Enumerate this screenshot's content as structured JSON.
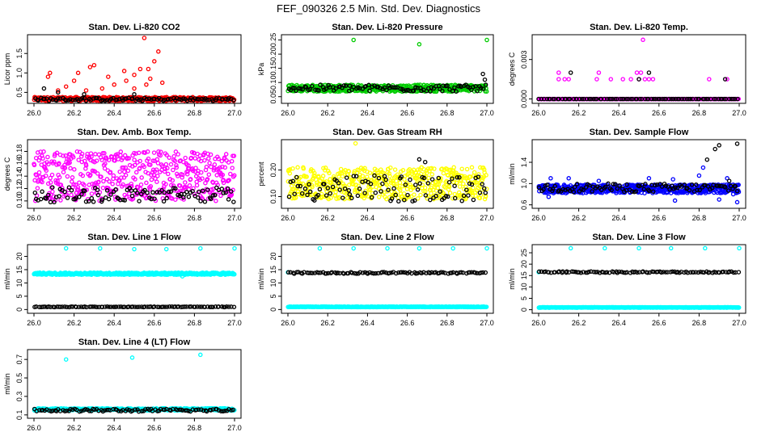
{
  "figure_title": "FEF_090326  2.5 Min. Std. Dev. Diagnostics",
  "chart_data": [
    {
      "type": "scatter",
      "title": "Stan. Dev. Li-820 CO2",
      "ylabel": "Licor ppm",
      "xlim": [
        26.0,
        27.0
      ],
      "ylim": [
        0.28,
        1.92
      ],
      "xticks": [
        "26.0",
        "26.2",
        "26.4",
        "26.6",
        "26.8",
        "27.0"
      ],
      "xtick_values": [
        26.0,
        26.2,
        26.4,
        26.6,
        26.8,
        27.0
      ],
      "yticks": [
        "0.5",
        "1.0",
        "1.5"
      ],
      "ytick_values": [
        0.5,
        1.0,
        1.5
      ],
      "series": [
        {
          "name": "series_a",
          "color": "#ff0000",
          "base": 0.33,
          "spread": 0.05,
          "n": 420,
          "outliers": [
            [
              26.08,
              1.0
            ],
            [
              26.07,
              0.9
            ],
            [
              26.16,
              0.65
            ],
            [
              26.2,
              0.8
            ],
            [
              26.22,
              1.0
            ],
            [
              26.28,
              1.15
            ],
            [
              26.3,
              1.2
            ],
            [
              26.37,
              0.9
            ],
            [
              26.4,
              0.7
            ],
            [
              26.45,
              1.05
            ],
            [
              26.5,
              0.95
            ],
            [
              26.53,
              1.1
            ],
            [
              26.55,
              1.9
            ],
            [
              26.57,
              1.1
            ],
            [
              26.58,
              0.85
            ],
            [
              26.6,
              1.3
            ],
            [
              26.62,
              1.55
            ],
            [
              26.64,
              0.75
            ],
            [
              26.5,
              0.6
            ],
            [
              26.46,
              0.8
            ],
            [
              26.34,
              0.6
            ],
            [
              26.26,
              0.55
            ],
            [
              26.12,
              0.55
            ],
            [
              26.56,
              0.7
            ]
          ]
        },
        {
          "name": "series_b",
          "color": "#000000",
          "base": 0.32,
          "spread": 0.04,
          "n": 100,
          "outliers": [
            [
              26.05,
              0.6
            ],
            [
              26.12,
              0.5
            ],
            [
              26.5,
              0.45
            ],
            [
              26.25,
              0.45
            ]
          ]
        }
      ]
    },
    {
      "type": "scatter",
      "title": "Stan. Dev. Li-820 Pressure",
      "ylabel": "kPa",
      "xlim": [
        26.0,
        27.0
      ],
      "ylim": [
        0.035,
        0.26
      ],
      "xticks": [
        "26.0",
        "26.2",
        "26.4",
        "26.6",
        "26.8",
        "27.0"
      ],
      "xtick_values": [
        26.0,
        26.2,
        26.4,
        26.6,
        26.8,
        27.0
      ],
      "yticks": [
        "0.05",
        "0.10",
        "0.15",
        "0.20",
        "0.25"
      ],
      "ytick_values": [
        0.05,
        0.1,
        0.15,
        0.2,
        0.25
      ],
      "series": [
        {
          "name": "series_a",
          "color": "#00cc00",
          "base": 0.08,
          "spread": 0.012,
          "n": 420,
          "outliers": [
            [
              26.33,
              0.25
            ],
            [
              26.66,
              0.235
            ],
            [
              27.0,
              0.25
            ]
          ]
        },
        {
          "name": "series_b",
          "color": "#000000",
          "base": 0.08,
          "spread": 0.012,
          "n": 100,
          "outliers": [
            [
              26.98,
              0.13
            ],
            [
              26.99,
              0.11
            ]
          ]
        }
      ]
    },
    {
      "type": "scatter",
      "title": "Stan. Dev. Li-820 Temp.",
      "ylabel": "degrees C",
      "xlim": [
        26.0,
        27.0
      ],
      "ylim": [
        -0.00015,
        0.0047
      ],
      "xticks": [
        "26.0",
        "26.2",
        "26.4",
        "26.6",
        "26.8",
        "27.0"
      ],
      "xtick_values": [
        26.0,
        26.2,
        26.4,
        26.6,
        26.8,
        27.0
      ],
      "yticks": [
        "0.000",
        "0.003"
      ],
      "ytick_values": [
        0.0,
        0.003
      ],
      "series": [
        {
          "name": "series_a",
          "color": "#ff00ff",
          "base": 0.0,
          "spread": 0.0,
          "n": 300,
          "outliers": [
            [
              26.1,
              0.0015
            ],
            [
              26.13,
              0.0015
            ],
            [
              26.1,
              0.002
            ],
            [
              26.15,
              0.0015
            ],
            [
              26.29,
              0.0015
            ],
            [
              26.3,
              0.002
            ],
            [
              26.36,
              0.0015
            ],
            [
              26.42,
              0.0015
            ],
            [
              26.46,
              0.0015
            ],
            [
              26.49,
              0.002
            ],
            [
              26.5,
              0.0015
            ],
            [
              26.51,
              0.002
            ],
            [
              26.53,
              0.0015
            ],
            [
              26.52,
              0.0045
            ],
            [
              26.55,
              0.0015
            ],
            [
              26.57,
              0.0015
            ],
            [
              26.85,
              0.0015
            ],
            [
              26.94,
              0.0015
            ]
          ]
        },
        {
          "name": "series_b",
          "color": "#000000",
          "base": 0.0,
          "spread": 0.0,
          "n": 90,
          "outliers": [
            [
              26.16,
              0.002
            ],
            [
              26.5,
              0.0015
            ],
            [
              26.55,
              0.002
            ],
            [
              26.93,
              0.0015
            ]
          ]
        }
      ]
    },
    {
      "type": "scatter",
      "title": "Stan. Dev. Amb. Box Temp.",
      "ylabel": "degrees C",
      "xlim": [
        26.0,
        27.0
      ],
      "ylim": [
        0.092,
        0.195
      ],
      "xticks": [
        "26.0",
        "26.2",
        "26.4",
        "26.6",
        "26.8",
        "27.0"
      ],
      "xtick_values": [
        26.0,
        26.2,
        26.4,
        26.6,
        26.8,
        27.0
      ],
      "yticks": [
        "0.10",
        "0.12",
        "0.14",
        "0.16",
        "0.18"
      ],
      "ytick_values": [
        0.1,
        0.12,
        0.14,
        0.16,
        0.18
      ],
      "series": [
        {
          "name": "series_a",
          "color": "#ff00ff",
          "base": 0.14,
          "spread": 0.04,
          "n": 500,
          "outliers": []
        },
        {
          "name": "series_b",
          "color": "#000000",
          "base": 0.11,
          "spread": 0.012,
          "n": 100,
          "outliers": []
        }
      ]
    },
    {
      "type": "scatter",
      "title": "Stan. Dev. Gas Stream RH",
      "ylabel": "percent",
      "xlim": [
        26.0,
        27.0
      ],
      "ylim": [
        0.065,
        0.305
      ],
      "xticks": [
        "26.0",
        "26.2",
        "26.4",
        "26.6",
        "26.8",
        "27.0"
      ],
      "xtick_values": [
        26.0,
        26.2,
        26.4,
        26.6,
        26.8,
        27.0
      ],
      "yticks": [
        "0.10",
        "0.20"
      ],
      "ytick_values": [
        0.1,
        0.2
      ],
      "series": [
        {
          "name": "series_a",
          "color": "#ffff00",
          "base": 0.15,
          "spread": 0.06,
          "n": 500,
          "outliers": [
            [
              26.34,
              0.3
            ]
          ]
        },
        {
          "name": "series_b",
          "color": "#000000",
          "base": 0.13,
          "spread": 0.05,
          "n": 100,
          "outliers": [
            [
              26.66,
              0.24
            ],
            [
              26.69,
              0.23
            ]
          ]
        }
      ]
    },
    {
      "type": "scatter",
      "title": "Stan. Dev. Sample Flow",
      "ylabel": "ml/min",
      "xlim": [
        26.0,
        27.0
      ],
      "ylim": [
        0.58,
        1.78
      ],
      "xticks": [
        "26.0",
        "26.2",
        "26.4",
        "26.6",
        "26.8",
        "27.0"
      ],
      "xtick_values": [
        26.0,
        26.2,
        26.4,
        26.6,
        26.8,
        27.0
      ],
      "yticks": [
        "0.6",
        "1.0",
        "1.4"
      ],
      "ytick_values": [
        0.6,
        1.0,
        1.4
      ],
      "series": [
        {
          "name": "series_a",
          "color": "#0000ff",
          "base": 0.9,
          "spread": 0.08,
          "n": 500,
          "outliers": [
            [
              26.05,
              0.75
            ],
            [
              26.06,
              1.1
            ],
            [
              26.15,
              1.1
            ],
            [
              26.3,
              1.05
            ],
            [
              26.55,
              1.1
            ],
            [
              26.68,
              0.68
            ],
            [
              26.67,
              1.08
            ],
            [
              26.8,
              1.15
            ],
            [
              26.82,
              1.3
            ],
            [
              26.94,
              1.1
            ],
            [
              26.9,
              0.7
            ],
            [
              26.97,
              0.8
            ],
            [
              26.99,
              0.65
            ]
          ]
        },
        {
          "name": "series_b",
          "color": "#000000",
          "base": 0.92,
          "spread": 0.08,
          "n": 100,
          "outliers": [
            [
              26.84,
              1.45
            ],
            [
              26.88,
              1.65
            ],
            [
              26.9,
              1.72
            ],
            [
              26.99,
              1.75
            ],
            [
              26.95,
              1.05
            ]
          ]
        }
      ]
    },
    {
      "type": "scatter",
      "title": "Stan. Dev. Line 1 Flow",
      "ylabel": "ml/min",
      "xlim": [
        26.0,
        27.0
      ],
      "ylim": [
        -0.5,
        23.5
      ],
      "xticks": [
        "26.0",
        "26.2",
        "26.4",
        "26.6",
        "26.8",
        "27.0"
      ],
      "xtick_values": [
        26.0,
        26.2,
        26.4,
        26.6,
        26.8,
        27.0
      ],
      "yticks": [
        "0",
        "5",
        "10",
        "15",
        "20"
      ],
      "ytick_values": [
        0,
        5,
        10,
        15,
        20
      ],
      "series": [
        {
          "name": "series_a",
          "color": "#00ffff",
          "base": 13.5,
          "spread": 0.4,
          "n": 420,
          "outliers": [
            [
              26.16,
              23.0
            ],
            [
              26.33,
              23.0
            ],
            [
              26.5,
              22.7
            ],
            [
              26.66,
              22.7
            ],
            [
              26.83,
              23.0
            ],
            [
              27.0,
              23.0
            ],
            [
              26.74,
              12.5
            ]
          ]
        },
        {
          "name": "series_b",
          "color": "#000000",
          "base": 1.0,
          "spread": 0.1,
          "n": 100,
          "outliers": []
        }
      ]
    },
    {
      "type": "scatter",
      "title": "Stan. Dev. Line 2 Flow",
      "ylabel": "ml/min",
      "xlim": [
        26.0,
        27.0
      ],
      "ylim": [
        -0.5,
        23.5
      ],
      "xticks": [
        "26.0",
        "26.2",
        "26.4",
        "26.6",
        "26.8",
        "27.0"
      ],
      "xtick_values": [
        26.0,
        26.2,
        26.4,
        26.6,
        26.8,
        27.0
      ],
      "yticks": [
        "0",
        "5",
        "10",
        "15",
        "20"
      ],
      "ytick_values": [
        0,
        5,
        10,
        15,
        20
      ],
      "series": [
        {
          "name": "series_a",
          "color": "#00ffff",
          "base": 1.0,
          "spread": 0.1,
          "n": 420,
          "outliers": [
            [
              26.0,
              14.0
            ],
            [
              26.16,
              23.0
            ],
            [
              26.33,
              23.0
            ],
            [
              26.5,
              23.0
            ],
            [
              26.66,
              23.0
            ],
            [
              26.83,
              23.0
            ],
            [
              27.0,
              23.0
            ]
          ]
        },
        {
          "name": "series_b",
          "color": "#000000",
          "base": 13.8,
          "spread": 0.3,
          "n": 100,
          "outliers": []
        }
      ]
    },
    {
      "type": "scatter",
      "title": "Stan. Dev. Line 3 Flow",
      "ylabel": "ml/min",
      "xlim": [
        26.0,
        27.0
      ],
      "ylim": [
        -0.5,
        27.5
      ],
      "xticks": [
        "26.0",
        "26.2",
        "26.4",
        "26.6",
        "26.8",
        "27.0"
      ],
      "xtick_values": [
        26.0,
        26.2,
        26.4,
        26.6,
        26.8,
        27.0
      ],
      "yticks": [
        "0",
        "5",
        "10",
        "15",
        "20",
        "25"
      ],
      "ytick_values": [
        0,
        5,
        10,
        15,
        20,
        25
      ],
      "series": [
        {
          "name": "series_a",
          "color": "#00ffff",
          "base": 1.0,
          "spread": 0.1,
          "n": 420,
          "outliers": [
            [
              26.0,
              16.5
            ],
            [
              26.16,
              27.0
            ],
            [
              26.33,
              27.0
            ],
            [
              26.5,
              27.0
            ],
            [
              26.66,
              27.0
            ],
            [
              26.83,
              27.0
            ],
            [
              27.0,
              27.0
            ]
          ]
        },
        {
          "name": "series_b",
          "color": "#000000",
          "base": 16.5,
          "spread": 0.3,
          "n": 100,
          "outliers": []
        }
      ]
    },
    {
      "type": "scatter",
      "title": "Stan. Dev. Line 4 (LT) Flow",
      "ylabel": "ml/min",
      "xlim": [
        26.0,
        27.0
      ],
      "ylim": [
        0.09,
        0.78
      ],
      "xticks": [
        "26.0",
        "26.2",
        "26.4",
        "26.6",
        "26.8",
        "27.0"
      ],
      "xtick_values": [
        26.0,
        26.2,
        26.4,
        26.6,
        26.8,
        27.0
      ],
      "yticks": [
        "0.1",
        "0.3",
        "0.5",
        "0.7"
      ],
      "ytick_values": [
        0.1,
        0.3,
        0.5,
        0.7
      ],
      "series": [
        {
          "name": "series_a",
          "color": "#00ffff",
          "base": 0.16,
          "spread": 0.012,
          "n": 420,
          "outliers": [
            [
              26.16,
              0.7
            ],
            [
              26.49,
              0.72
            ],
            [
              26.83,
              0.75
            ]
          ]
        },
        {
          "name": "series_b",
          "color": "#000000",
          "base": 0.15,
          "spread": 0.015,
          "n": 100,
          "outliers": []
        }
      ]
    }
  ]
}
